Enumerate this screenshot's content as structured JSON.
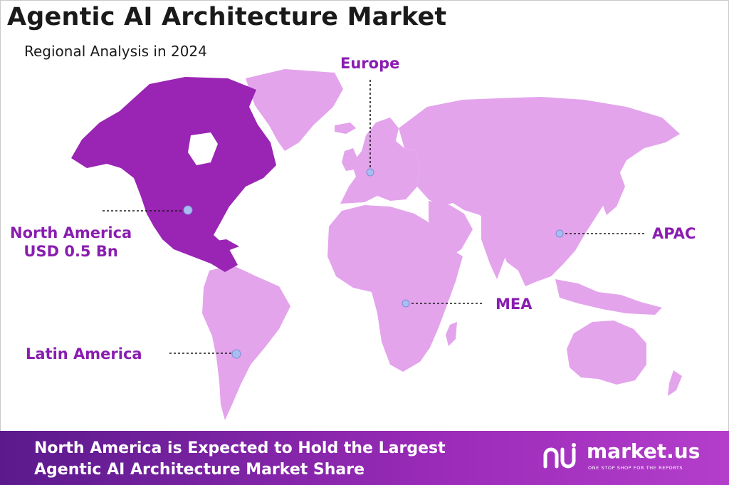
{
  "header": {
    "title": "Agentic AI Architecture Market",
    "subtitle": "Regional Analysis in 2024"
  },
  "regions": [
    {
      "id": "europe",
      "label": "Europe",
      "highlighted": false
    },
    {
      "id": "north-america",
      "label": "North America",
      "value": "USD 0.5 Bn",
      "highlighted": true
    },
    {
      "id": "apac",
      "label": "APAC",
      "highlighted": false
    },
    {
      "id": "mea",
      "label": "MEA",
      "highlighted": false
    },
    {
      "id": "latin-america",
      "label": "Latin America",
      "highlighted": false
    }
  ],
  "colors": {
    "highlight": "#9a24b4",
    "land": "#e3a4ec",
    "label": "#8a1db0",
    "marker": "#a9bdf0"
  },
  "footer": {
    "line1": "North America is Expected to Hold the Largest",
    "line2": "Agentic AI Architecture Market Share",
    "brand_name": "market.us",
    "brand_tagline": "ONE STOP SHOP FOR THE REPORTS"
  }
}
